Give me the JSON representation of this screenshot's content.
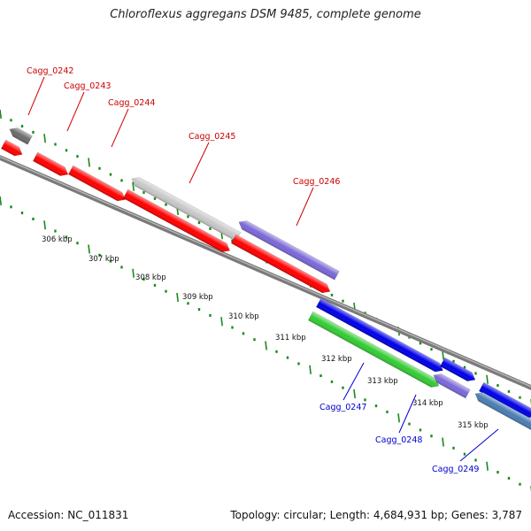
{
  "title": "Chloroflexus aggregans DSM 9485, complete genome",
  "footer": {
    "accession": "Accession: NC_011831",
    "summary": "Topology: circular; Length: 4,684,931 bp; Genes: 3,787"
  },
  "colors": {
    "red": "#ff0000",
    "grey": "#c8c8c8",
    "dark_grey": "#6b6b6b",
    "purple": "#7b68d8",
    "blue": "#0000e8",
    "green": "#33cc33",
    "steel_blue": "#4a7eb4",
    "ticks": "#1a8a1a",
    "label_red": "#cc0000",
    "label_blue": "#0000cc",
    "backbone": "#7a7a7a"
  },
  "scale_labels": [
    "306 kbp",
    "307 kbp",
    "308 kbp",
    "309 kbp",
    "310 kbp",
    "311 kbp",
    "312 kbp",
    "313 kbp",
    "314 kbp",
    "315 kbp"
  ],
  "genes": [
    {
      "name": "Cagg_0242",
      "color": "red"
    },
    {
      "name": "Cagg_0243",
      "color": "red"
    },
    {
      "name": "Cagg_0244",
      "color": "red"
    },
    {
      "name": "Cagg_0245",
      "color": "grey"
    },
    {
      "name": "Cagg_0246",
      "color": "purple"
    },
    {
      "name": "Cagg_0247",
      "color": "blue"
    },
    {
      "name": "Cagg_0248",
      "color": "purple"
    },
    {
      "name": "Cagg_0249",
      "color": "steel_blue"
    }
  ]
}
